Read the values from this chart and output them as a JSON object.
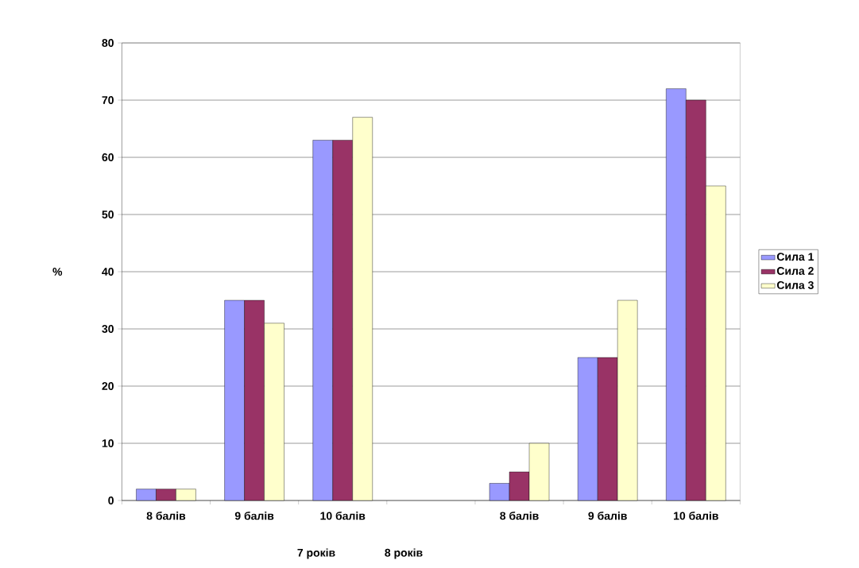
{
  "chart_data": {
    "type": "bar",
    "ylabel": "%",
    "categories": [
      "8 балів",
      "9 балів",
      "10 балів",
      null,
      "8 балів",
      "9 балів",
      "10 балів"
    ],
    "series": [
      {
        "name": "Сила 1",
        "color": "#9999ff",
        "values": [
          2,
          35,
          63,
          null,
          3,
          25,
          72
        ]
      },
      {
        "name": "Сила 2",
        "color": "#993366",
        "values": [
          2,
          35,
          63,
          null,
          5,
          25,
          70
        ]
      },
      {
        "name": "Сила 3",
        "color": "#ffffcc",
        "values": [
          2,
          31,
          67,
          null,
          10,
          35,
          55
        ]
      }
    ],
    "ylim": [
      0,
      80
    ],
    "yticks": [
      0,
      10,
      20,
      30,
      40,
      50,
      60,
      70,
      80
    ],
    "grid": "y",
    "legend": "right",
    "annotations": [
      "7 років",
      "8 років"
    ]
  }
}
